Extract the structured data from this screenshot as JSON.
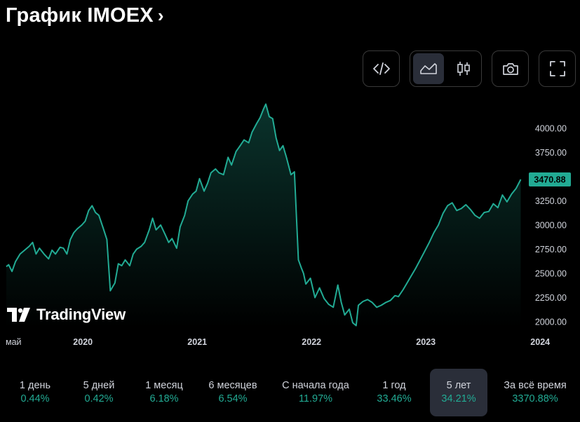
{
  "header": {
    "title": "График IMOEX",
    "chevron": "›"
  },
  "toolbar": {
    "embed_icon": "code-icon",
    "line_chart_icon": "area-chart-icon",
    "candles_icon": "candlestick-icon",
    "snapshot_icon": "camera-icon",
    "fullscreen_icon": "fullscreen-icon"
  },
  "chart_data": {
    "type": "area",
    "title": "График IMOEX",
    "xlabel": "",
    "ylabel": "",
    "ylim": [
      1930,
      4330
    ],
    "y_ticks": [
      "4000.00",
      "3750.00",
      "3500.00",
      "3250.00",
      "3000.00",
      "2750.00",
      "2500.00",
      "2250.00",
      "2000.00"
    ],
    "y_tick_values": [
      4000,
      3750,
      3500,
      3250,
      3000,
      2750,
      2500,
      2250,
      2000
    ],
    "x_ticks": [
      {
        "label": "май",
        "t": 0
      },
      {
        "label": "2020",
        "t": 0.67
      },
      {
        "label": "2021",
        "t": 1.67
      },
      {
        "label": "2022",
        "t": 2.67
      },
      {
        "label": "2023",
        "t": 3.67
      },
      {
        "label": "2024",
        "t": 4.67
      }
    ],
    "current_price": "3470.88",
    "current_value": 3470.88,
    "color_line": "#22ab94",
    "series": [
      {
        "name": "IMOEX",
        "points": [
          [
            0.0,
            2570
          ],
          [
            0.02,
            2590
          ],
          [
            0.05,
            2520
          ],
          [
            0.08,
            2620
          ],
          [
            0.12,
            2700
          ],
          [
            0.16,
            2740
          ],
          [
            0.2,
            2780
          ],
          [
            0.23,
            2820
          ],
          [
            0.26,
            2700
          ],
          [
            0.29,
            2760
          ],
          [
            0.33,
            2700
          ],
          [
            0.37,
            2650
          ],
          [
            0.4,
            2740
          ],
          [
            0.43,
            2700
          ],
          [
            0.47,
            2770
          ],
          [
            0.5,
            2760
          ],
          [
            0.53,
            2700
          ],
          [
            0.56,
            2850
          ],
          [
            0.59,
            2920
          ],
          [
            0.62,
            2960
          ],
          [
            0.66,
            3000
          ],
          [
            0.69,
            3040
          ],
          [
            0.72,
            3150
          ],
          [
            0.75,
            3200
          ],
          [
            0.78,
            3130
          ],
          [
            0.81,
            3100
          ],
          [
            0.85,
            2960
          ],
          [
            0.88,
            2850
          ],
          [
            0.91,
            2320
          ],
          [
            0.95,
            2400
          ],
          [
            0.98,
            2600
          ],
          [
            1.01,
            2580
          ],
          [
            1.04,
            2640
          ],
          [
            1.08,
            2580
          ],
          [
            1.11,
            2700
          ],
          [
            1.14,
            2750
          ],
          [
            1.18,
            2780
          ],
          [
            1.21,
            2820
          ],
          [
            1.25,
            2950
          ],
          [
            1.28,
            3070
          ],
          [
            1.31,
            2950
          ],
          [
            1.35,
            3000
          ],
          [
            1.39,
            2900
          ],
          [
            1.42,
            2820
          ],
          [
            1.45,
            2860
          ],
          [
            1.49,
            2760
          ],
          [
            1.52,
            2980
          ],
          [
            1.56,
            3100
          ],
          [
            1.59,
            3250
          ],
          [
            1.63,
            3320
          ],
          [
            1.66,
            3350
          ],
          [
            1.69,
            3480
          ],
          [
            1.73,
            3350
          ],
          [
            1.76,
            3430
          ],
          [
            1.79,
            3540
          ],
          [
            1.83,
            3580
          ],
          [
            1.86,
            3540
          ],
          [
            1.9,
            3520
          ],
          [
            1.94,
            3700
          ],
          [
            1.97,
            3620
          ],
          [
            2.01,
            3760
          ],
          [
            2.04,
            3810
          ],
          [
            2.08,
            3880
          ],
          [
            2.12,
            3850
          ],
          [
            2.15,
            3960
          ],
          [
            2.19,
            4050
          ],
          [
            2.22,
            4110
          ],
          [
            2.25,
            4200
          ],
          [
            2.27,
            4250
          ],
          [
            2.3,
            4120
          ],
          [
            2.33,
            4100
          ],
          [
            2.36,
            3900
          ],
          [
            2.39,
            3770
          ],
          [
            2.42,
            3820
          ],
          [
            2.45,
            3700
          ],
          [
            2.49,
            3520
          ],
          [
            2.52,
            3550
          ],
          [
            2.555,
            2640
          ],
          [
            2.58,
            2560
          ],
          [
            2.6,
            2500
          ],
          [
            2.62,
            2390
          ],
          [
            2.66,
            2450
          ],
          [
            2.7,
            2250
          ],
          [
            2.74,
            2350
          ],
          [
            2.78,
            2240
          ],
          [
            2.82,
            2180
          ],
          [
            2.86,
            2150
          ],
          [
            2.9,
            2380
          ],
          [
            2.93,
            2200
          ],
          [
            2.96,
            2070
          ],
          [
            3.0,
            2130
          ],
          [
            3.03,
            1990
          ],
          [
            3.06,
            1960
          ],
          [
            3.08,
            2170
          ],
          [
            3.12,
            2210
          ],
          [
            3.16,
            2230
          ],
          [
            3.2,
            2200
          ],
          [
            3.24,
            2150
          ],
          [
            3.28,
            2170
          ],
          [
            3.32,
            2200
          ],
          [
            3.36,
            2220
          ],
          [
            3.4,
            2270
          ],
          [
            3.43,
            2260
          ],
          [
            3.47,
            2330
          ],
          [
            3.5,
            2390
          ],
          [
            3.54,
            2470
          ],
          [
            3.58,
            2550
          ],
          [
            3.62,
            2640
          ],
          [
            3.66,
            2730
          ],
          [
            3.7,
            2820
          ],
          [
            3.74,
            2920
          ],
          [
            3.78,
            3000
          ],
          [
            3.82,
            3120
          ],
          [
            3.86,
            3200
          ],
          [
            3.9,
            3230
          ],
          [
            3.94,
            3150
          ],
          [
            3.98,
            3170
          ],
          [
            4.02,
            3210
          ],
          [
            4.06,
            3160
          ],
          [
            4.1,
            3100
          ],
          [
            4.14,
            3070
          ],
          [
            4.18,
            3130
          ],
          [
            4.22,
            3140
          ],
          [
            4.26,
            3220
          ],
          [
            4.3,
            3180
          ],
          [
            4.34,
            3310
          ],
          [
            4.38,
            3240
          ],
          [
            4.42,
            3320
          ],
          [
            4.46,
            3380
          ],
          [
            4.5,
            3470.88
          ]
        ]
      }
    ]
  },
  "watermark": {
    "text": "TradingView"
  },
  "periods": [
    {
      "label": "1 день",
      "value": "0.44%"
    },
    {
      "label": "5 дней",
      "value": "0.42%"
    },
    {
      "label": "1 месяц",
      "value": "6.18%"
    },
    {
      "label": "6 месяцев",
      "value": "6.54%"
    },
    {
      "label": "С начала года",
      "value": "11.97%"
    },
    {
      "label": "1 год",
      "value": "33.46%"
    },
    {
      "label": "5 лет",
      "value": "34.21%",
      "active": true
    },
    {
      "label": "За всё время",
      "value": "3370.88%"
    }
  ]
}
